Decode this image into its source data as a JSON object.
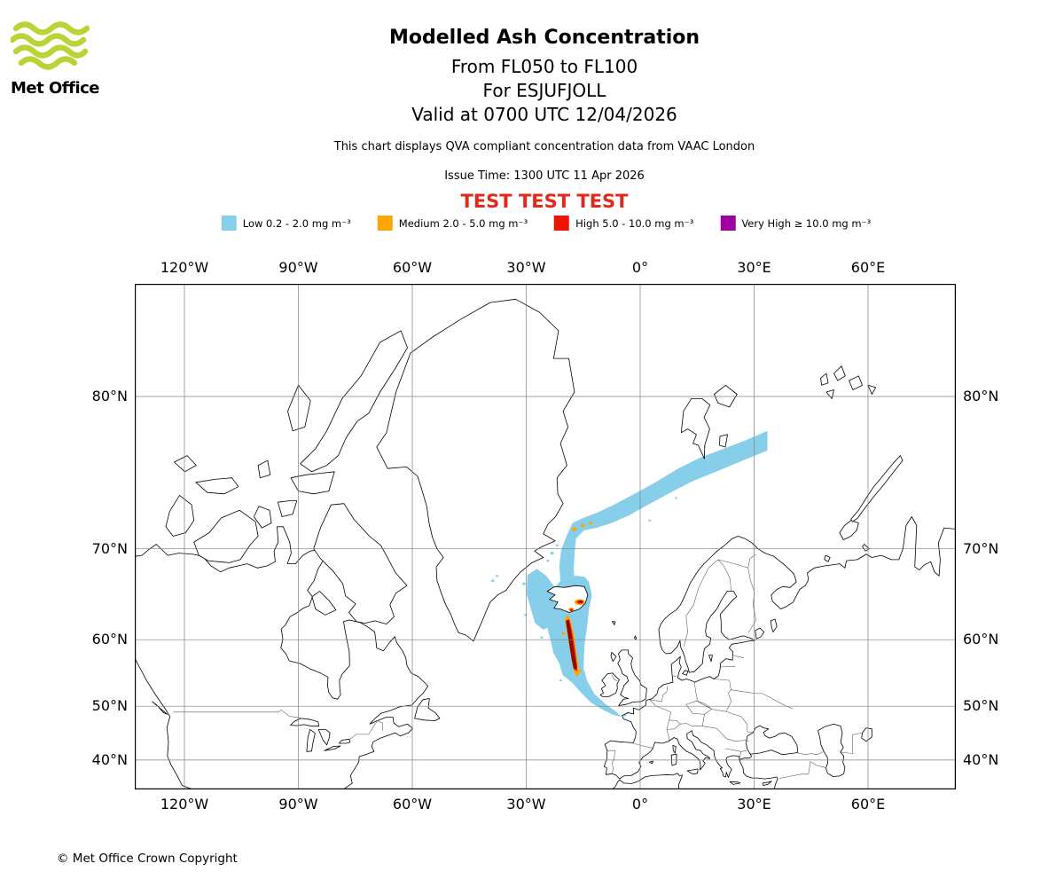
{
  "header": {
    "logo_text": "Met Office",
    "title": "Modelled Ash Concentration",
    "subtitle_flight_levels": "From FL050 to FL100",
    "subtitle_volcano": "For ESJUFJOLL",
    "subtitle_valid": "Valid at 0700 UTC 12/04/2026",
    "description": "This chart displays QVA compliant concentration data from VAAC London",
    "issue_time": "Issue Time: 1300 UTC 11 Apr 2026",
    "test_banner": "TEST TEST TEST"
  },
  "legend": {
    "items": [
      {
        "label": "Low 0.2 - 2.0 mg m⁻³",
        "color": "#87CEEB"
      },
      {
        "label": "Medium 2.0 - 5.0 mg m⁻³",
        "color": "#FFA500"
      },
      {
        "label": "High 5.0 - 10.0 mg m⁻³",
        "color": "#F01400"
      },
      {
        "label": "Very High  ≥  10.0 mg m⁻³",
        "color": "#A000A0"
      }
    ]
  },
  "map": {
    "lon_ticks": [
      {
        "label": "120°W",
        "deg": -120
      },
      {
        "label": "90°W",
        "deg": -90
      },
      {
        "label": "60°W",
        "deg": -60
      },
      {
        "label": "30°W",
        "deg": -30
      },
      {
        "label": "0°",
        "deg": 0
      },
      {
        "label": "30°E",
        "deg": 30
      },
      {
        "label": "60°E",
        "deg": 60
      }
    ],
    "lat_ticks": [
      {
        "label": "80°N",
        "deg": 80
      },
      {
        "label": "70°N",
        "deg": 70
      },
      {
        "label": "60°N",
        "deg": 60
      },
      {
        "label": "50°N",
        "deg": 50
      },
      {
        "label": "40°N",
        "deg": 40
      }
    ]
  },
  "colors": {
    "low": "#87CEEB",
    "medium": "#FFA500",
    "high": "#F01400",
    "very_high": "#A000A0",
    "high_core": "#8B0903",
    "test_text": "#E02A1C",
    "logo_green": "#B8D436",
    "grid": "#808080",
    "coast": "#000000",
    "border_line": "#555555"
  },
  "footer": {
    "copyright": "© Met Office Crown Copyright"
  }
}
